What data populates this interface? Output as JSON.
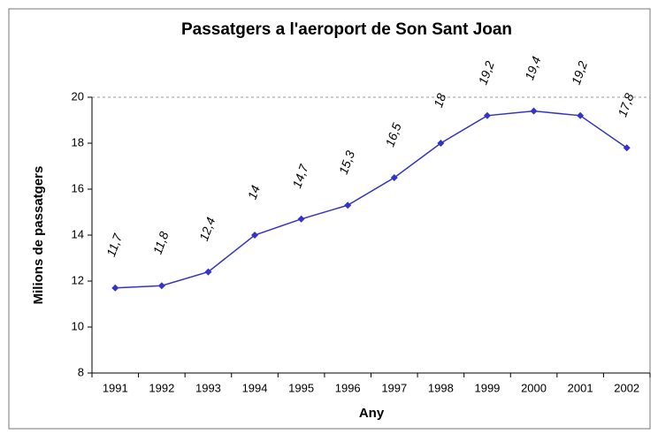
{
  "chart_data": {
    "type": "line",
    "title": "Passatgers a l'aeroport de Son Sant Joan",
    "x_label": "Any",
    "y_label": "Milions de passatgers",
    "categories": [
      "1991",
      "1992",
      "1993",
      "1994",
      "1995",
      "1996",
      "1997",
      "1998",
      "1999",
      "2000",
      "2001",
      "2002"
    ],
    "values": [
      11.7,
      11.8,
      12.4,
      14,
      14.7,
      15.3,
      16.5,
      18,
      19.2,
      19.4,
      19.2,
      17.8
    ],
    "value_labels": [
      "11,7",
      "11,8",
      "12,4",
      "14",
      "14,7",
      "15,3",
      "16,5",
      "18",
      "19,2",
      "19,4",
      "19,2",
      "17,8"
    ],
    "color": "#3333cc",
    "ylim": [
      8,
      20
    ],
    "yticks": [
      8,
      10,
      12,
      14,
      16,
      18,
      20
    ],
    "grid": false
  }
}
